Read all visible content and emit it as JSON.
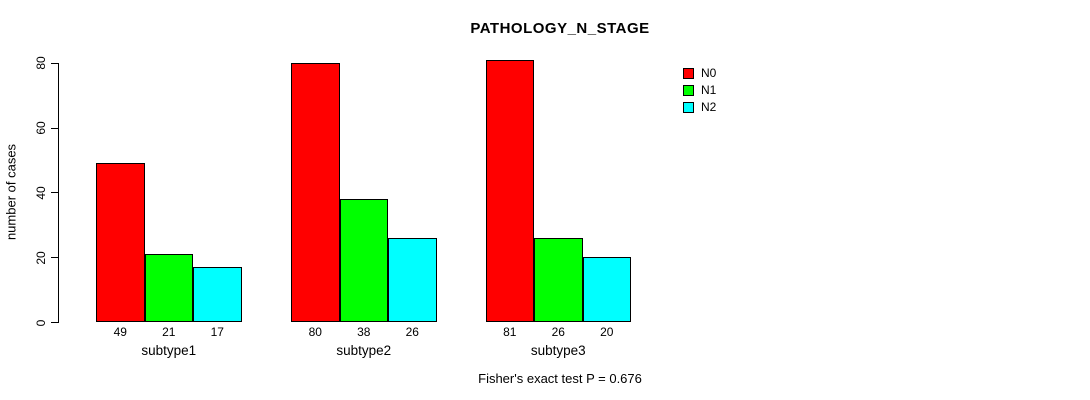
{
  "title": "PATHOLOGY_N_STAGE",
  "footer": "Fisher's exact test P = 0.676",
  "chart_data": {
    "type": "bar",
    "title": "PATHOLOGY_N_STAGE",
    "categories": [
      "subtype1",
      "subtype2",
      "subtype3"
    ],
    "series": [
      {
        "name": "N0",
        "color": "#ff0000",
        "values": [
          49,
          80,
          81
        ]
      },
      {
        "name": "N1",
        "color": "#00ff00",
        "values": [
          21,
          38,
          26
        ]
      },
      {
        "name": "N2",
        "color": "#00ffff",
        "values": [
          17,
          26,
          20
        ]
      }
    ],
    "xlabel": "",
    "ylabel": "number of cases",
    "ylim": [
      0,
      80
    ],
    "yticks": [
      0,
      20,
      40,
      60,
      80
    ],
    "bar_value_labels": true,
    "grid": false,
    "legend_position": "top-right",
    "annotation": "Fisher's exact test P = 0.676",
    "background_color": "#ffffff",
    "text_color": "#000000"
  }
}
